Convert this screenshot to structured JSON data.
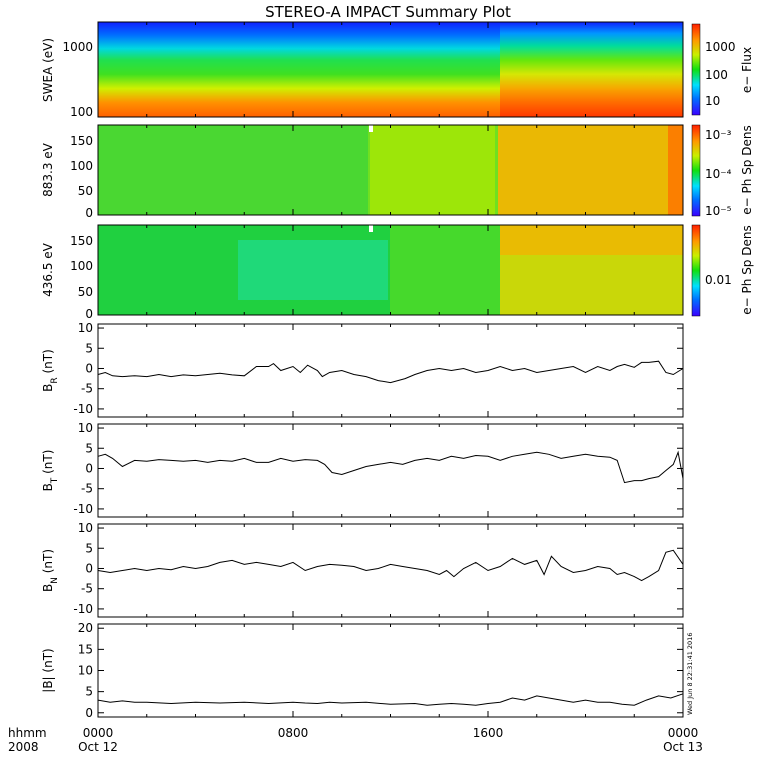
{
  "chart_data": {
    "title": "STEREO-A IMPACT Summary Plot",
    "type": "line",
    "x_axis": {
      "tick_labels": [
        "0000",
        "0800",
        "1600",
        "0000"
      ],
      "tick_hours": [
        0,
        8,
        16,
        24
      ],
      "sub_labels": [
        "Oct 12",
        "",
        "",
        "Oct 13"
      ],
      "left_labels": [
        "hhmm",
        "2008"
      ],
      "range_hours": [
        0,
        24
      ]
    },
    "spectrograms": [
      {
        "ylabel": "SWEA (eV)",
        "yticks": [
          "1000",
          "100"
        ],
        "colorbar_label": "e− Flux",
        "colorbar_ticks": [
          "1000",
          "100",
          "10"
        ]
      },
      {
        "ylabel": "883.3 eV",
        "yticks": [
          "150",
          "100",
          "50",
          "0"
        ],
        "colorbar_label": "e− Ph Sp Dens",
        "colorbar_ticks": [
          "10⁻³",
          "10⁻⁴",
          "10⁻⁵"
        ]
      },
      {
        "ylabel": "436.5 eV",
        "yticks": [
          "150",
          "100",
          "50",
          "0"
        ],
        "colorbar_label": "e− Ph Sp Dens",
        "colorbar_ticks": [
          "0.01"
        ]
      }
    ],
    "line_panels": [
      {
        "ylabel": "B_R (nT)",
        "ylim": [
          -12,
          11
        ],
        "yticks": [
          10,
          5,
          0,
          -5,
          -10
        ],
        "series": {
          "x": [
            0,
            0.3,
            0.6,
            1,
            1.5,
            2,
            2.5,
            3,
            3.5,
            4,
            4.5,
            5,
            5.5,
            6,
            6.5,
            7,
            7.2,
            7.5,
            8,
            8.3,
            8.6,
            9,
            9.2,
            9.5,
            10,
            10.5,
            11,
            11.5,
            12,
            12.3,
            12.6,
            13,
            13.5,
            14,
            14.5,
            15,
            15.5,
            16,
            16.5,
            17,
            17.5,
            18,
            18.5,
            19,
            19.5,
            20,
            20.5,
            21,
            21.3,
            21.6,
            22,
            22.3,
            22.6,
            23,
            23.3,
            23.6,
            24
          ],
          "y": [
            -1.5,
            -1,
            -1.8,
            -2,
            -1.8,
            -2,
            -1.5,
            -2,
            -1.6,
            -1.8,
            -1.5,
            -1.2,
            -1.6,
            -1.8,
            0.5,
            0.5,
            1.2,
            -0.5,
            0.5,
            -1,
            0.8,
            -0.5,
            -2,
            -1,
            -0.5,
            -1.5,
            -2,
            -3,
            -3.5,
            -3,
            -2.5,
            -1.5,
            -0.5,
            0,
            -0.5,
            0,
            -1,
            -0.5,
            0.5,
            -0.5,
            0,
            -1,
            -0.5,
            0,
            0.5,
            -1,
            0.5,
            -0.5,
            0.5,
            1,
            0.3,
            1.5,
            1.5,
            1.8,
            -1,
            -1.5,
            0
          ]
        }
      },
      {
        "ylabel": "B_T (nT)",
        "ylim": [
          -12,
          11
        ],
        "yticks": [
          10,
          5,
          0,
          -5,
          -10
        ],
        "series": {
          "x": [
            0,
            0.3,
            0.6,
            1,
            1.5,
            2,
            2.5,
            3,
            3.5,
            4,
            4.5,
            5,
            5.5,
            6,
            6.5,
            7,
            7.5,
            8,
            8.5,
            9,
            9.3,
            9.6,
            10,
            10.5,
            11,
            11.5,
            12,
            12.5,
            13,
            13.5,
            14,
            14.5,
            15,
            15.5,
            16,
            16.5,
            17,
            17.5,
            18,
            18.5,
            19,
            19.5,
            20,
            20.5,
            21,
            21.3,
            21.6,
            22,
            22.3,
            22.6,
            23,
            23.3,
            23.6,
            23.8,
            24
          ],
          "y": [
            3,
            3.5,
            2.5,
            0.5,
            2,
            1.8,
            2.2,
            2,
            1.8,
            2,
            1.5,
            2,
            1.8,
            2.5,
            1.5,
            1.5,
            2.5,
            1.8,
            2.2,
            2,
            1,
            -1,
            -1.5,
            -0.5,
            0.5,
            1,
            1.5,
            1,
            2,
            2.5,
            2,
            3,
            2.5,
            3.2,
            3,
            2,
            3,
            3.5,
            4,
            3.5,
            2.5,
            3,
            3.5,
            3,
            2.8,
            2,
            -3.5,
            -3,
            -3,
            -2.5,
            -2,
            -0.5,
            1,
            4,
            -2.5
          ]
        }
      },
      {
        "ylabel": "B_N (nT)",
        "ylim": [
          -12,
          11
        ],
        "yticks": [
          10,
          5,
          0,
          -5,
          -10
        ],
        "series": {
          "x": [
            0,
            0.5,
            1,
            1.5,
            2,
            2.5,
            3,
            3.5,
            4,
            4.5,
            5,
            5.5,
            6,
            6.5,
            7,
            7.5,
            8,
            8.5,
            9,
            9.5,
            10,
            10.5,
            11,
            11.5,
            12,
            12.5,
            13,
            13.5,
            14,
            14.3,
            14.6,
            15,
            15.5,
            16,
            16.5,
            17,
            17.5,
            18,
            18.3,
            18.6,
            19,
            19.5,
            20,
            20.5,
            21,
            21.3,
            21.6,
            22,
            22.3,
            22.6,
            23,
            23.3,
            23.6,
            24
          ],
          "y": [
            -0.5,
            -1,
            -0.5,
            0,
            -0.5,
            0,
            -0.3,
            0.5,
            0,
            0.5,
            1.5,
            2,
            1,
            1.5,
            1,
            0.5,
            1.5,
            -0.5,
            0.5,
            1,
            0.8,
            0.5,
            -0.5,
            0,
            1,
            0.5,
            0,
            -0.5,
            -1.5,
            -0.5,
            -2,
            0,
            1.5,
            -0.5,
            0.5,
            2.5,
            1,
            2,
            -1.5,
            3,
            0.5,
            -1,
            -0.5,
            0.5,
            0,
            -1.5,
            -1,
            -2,
            -3,
            -2,
            -0.5,
            4,
            4.5,
            1
          ]
        }
      },
      {
        "ylabel": "|B| (nT)",
        "ylim": [
          -1,
          21
        ],
        "yticks": [
          20,
          15,
          10,
          5,
          0
        ],
        "series": {
          "x": [
            0,
            0.5,
            1,
            1.5,
            2,
            3,
            4,
            5,
            6,
            7,
            8,
            8.5,
            9,
            9.5,
            10,
            11,
            12,
            13,
            13.5,
            14,
            14.5,
            15,
            15.5,
            16,
            16.5,
            17,
            17.5,
            18,
            18.5,
            19,
            19.5,
            20,
            20.5,
            21,
            21.5,
            22,
            22.5,
            23,
            23.5,
            24
          ],
          "y": [
            3,
            2.5,
            2.8,
            2.5,
            2.5,
            2.2,
            2.5,
            2.3,
            2.5,
            2.2,
            2.5,
            2.3,
            2.2,
            2.5,
            2.3,
            2.5,
            2,
            2.2,
            1.8,
            2,
            2.2,
            2,
            1.8,
            2.2,
            2.5,
            3.5,
            3,
            4,
            3.5,
            3,
            2.5,
            3,
            2.5,
            2.5,
            2,
            1.8,
            3,
            4,
            3.5,
            4.5
          ]
        }
      }
    ],
    "timestamp": "Wed Jun  8 22:31:41 2016"
  }
}
